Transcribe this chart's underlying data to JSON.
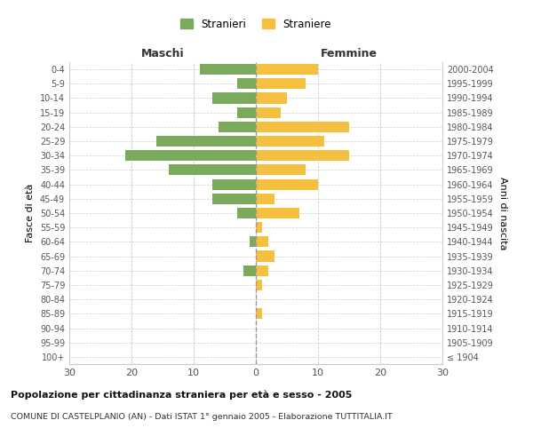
{
  "age_groups": [
    "100+",
    "95-99",
    "90-94",
    "85-89",
    "80-84",
    "75-79",
    "70-74",
    "65-69",
    "60-64",
    "55-59",
    "50-54",
    "45-49",
    "40-44",
    "35-39",
    "30-34",
    "25-29",
    "20-24",
    "15-19",
    "10-14",
    "5-9",
    "0-4"
  ],
  "birth_years": [
    "≤ 1904",
    "1905-1909",
    "1910-1914",
    "1915-1919",
    "1920-1924",
    "1925-1929",
    "1930-1934",
    "1935-1939",
    "1940-1944",
    "1945-1949",
    "1950-1954",
    "1955-1959",
    "1960-1964",
    "1965-1969",
    "1970-1974",
    "1975-1979",
    "1980-1984",
    "1985-1989",
    "1990-1994",
    "1995-1999",
    "2000-2004"
  ],
  "males": [
    0,
    0,
    0,
    0,
    0,
    0,
    2,
    0,
    1,
    0,
    3,
    7,
    7,
    14,
    21,
    16,
    6,
    3,
    7,
    3,
    9
  ],
  "females": [
    0,
    0,
    0,
    1,
    0,
    1,
    2,
    3,
    2,
    1,
    7,
    3,
    10,
    8,
    15,
    11,
    15,
    4,
    5,
    8,
    10
  ],
  "male_color": "#7aaa5c",
  "female_color": "#f5c040",
  "male_label": "Stranieri",
  "female_label": "Straniere",
  "xlabel_left": "Maschi",
  "xlabel_right": "Femmine",
  "ylabel_left": "Fasce di età",
  "ylabel_right": "Anni di nascita",
  "title1": "Popolazione per cittadinanza straniera per età e sesso - 2005",
  "title2": "COMUNE DI CASTELPLANIO (AN) - Dati ISTAT 1° gennaio 2005 - Elaborazione TUTTITALIA.IT",
  "xlim": 30,
  "grid_color": "#cccccc"
}
